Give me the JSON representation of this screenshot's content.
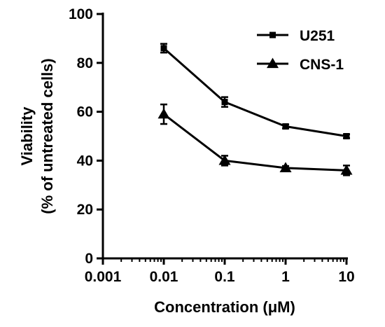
{
  "chart_data": {
    "type": "line",
    "xscale": "log",
    "x_ticks": [
      "0.001",
      "0.01",
      "0.1",
      "1",
      "10"
    ],
    "x_tick_values": [
      0.001,
      0.01,
      0.1,
      1,
      10
    ],
    "y_ticks": [
      "0",
      "20",
      "40",
      "60",
      "80",
      "100"
    ],
    "y_tick_values": [
      0,
      20,
      40,
      60,
      80,
      100
    ],
    "xlim": [
      0.001,
      10
    ],
    "ylim": [
      0,
      100
    ],
    "xlabel": "Concentration (μM)",
    "ylabel_lines": [
      "Viability",
      "(% of untreated cells)"
    ],
    "grid": false,
    "legend_position": "top-right",
    "series": [
      {
        "name": "U251",
        "marker": "square",
        "x": [
          0.01,
          0.1,
          1,
          10
        ],
        "y": [
          86,
          64,
          54,
          50
        ],
        "error": [
          1.8,
          2.0,
          0.8,
          0.8
        ]
      },
      {
        "name": "CNS-1",
        "marker": "triangle",
        "x": [
          0.01,
          0.1,
          1,
          10
        ],
        "y": [
          59,
          40,
          37,
          36
        ],
        "error": [
          4.0,
          2.0,
          0.8,
          2.0
        ]
      }
    ],
    "colors": {
      "line": "#000000"
    }
  }
}
